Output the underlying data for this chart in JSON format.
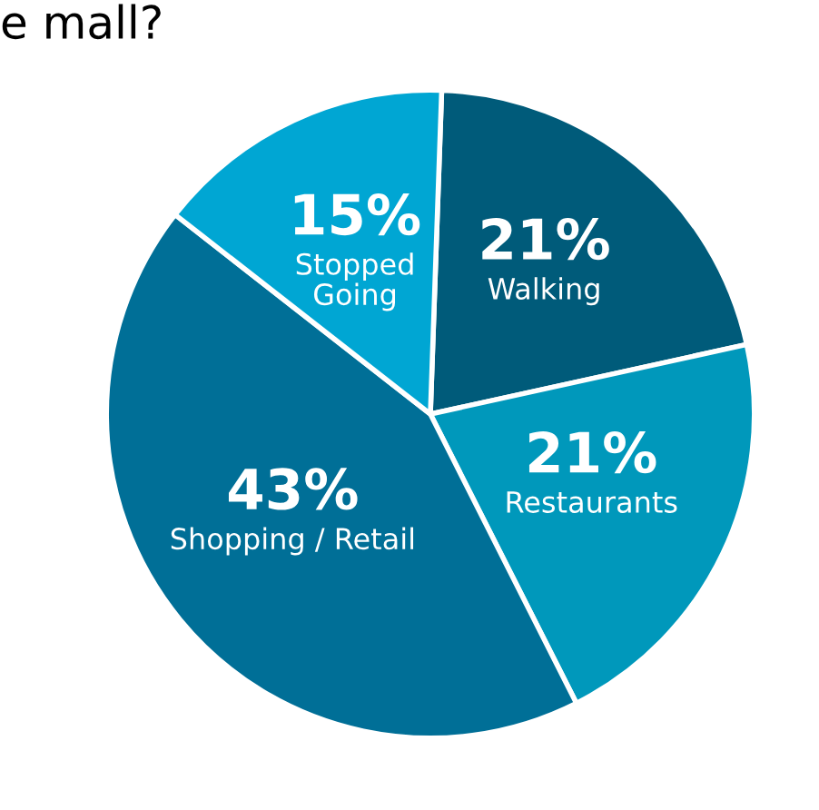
{
  "chart_data": {
    "type": "pie",
    "title": "e mall?",
    "categories": [
      "Walking",
      "Restaurants",
      "Shopping / Retail",
      "Stopped Going"
    ],
    "values": [
      21,
      21,
      43,
      15
    ],
    "colors": [
      "#005b7a",
      "#0098bb",
      "#006f97",
      "#00a6d3"
    ],
    "value_labels": [
      "21%",
      "21%",
      "43%",
      "15%"
    ]
  }
}
